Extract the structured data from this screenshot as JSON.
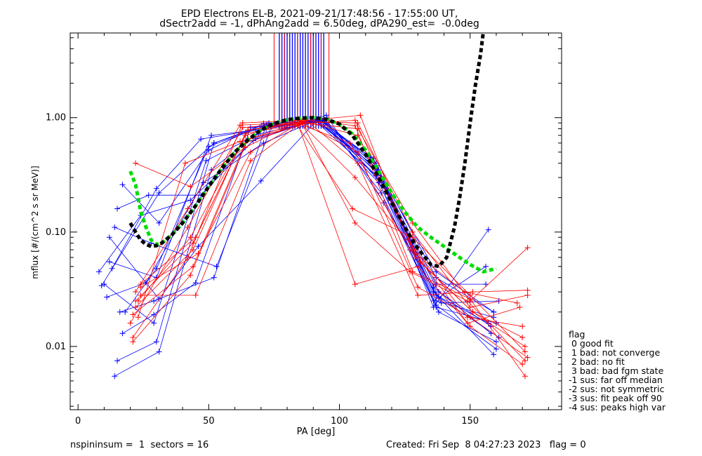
{
  "title_line1": "EPD Electrons EL-B, 2021-09-21/17:48:56 - 17:55:00 UT,",
  "title_line2": "dSectr2add = -1, dPhAng2add = 6.50deg, dPA290_est=  -0.0deg",
  "footer_left": "nspininsum =  1  sectors = 16",
  "footer_right": "Created: Fri Sep  8 04:27:23 2023   flag = 0",
  "legend": {
    "title": "flag",
    "items": [
      " 0 good fit",
      " 1 bad: not converge",
      " 2 bad: no fit",
      " 3 bad: bad fgm state",
      "-1 sus: far off median",
      "-2 sus: not symmetric",
      "-3 sus: fit peak off 90",
      "-4 sus: peaks high var"
    ]
  },
  "colors": {
    "series_a": "#0000ff",
    "series_b": "#ff0000",
    "fit_green": "#00dd00",
    "fit_black": "#000000"
  },
  "chart_data": {
    "type": "line",
    "xlabel": "PA [deg]",
    "ylabel": "mflux [#/(cm^2 s sr MeV)]",
    "xlim": [
      -3,
      185
    ],
    "ylim": [
      0.0028,
      5.5
    ],
    "y_scale": "log",
    "x_ticks": [
      0,
      50,
      100,
      150
    ],
    "x_tick_labels": [
      "0",
      "50",
      "100",
      "150"
    ],
    "y_ticks": [
      0.01,
      0.1,
      1.0
    ],
    "y_tick_labels": [
      "0.01",
      "0.10",
      "1.00"
    ],
    "grid": false,
    "series": [
      {
        "color": "blue",
        "x": [
          9,
          31,
          52,
          73,
          94,
          115,
          136,
          157
        ],
        "y": [
          0.034,
          0.22,
          0.6,
          0.87,
          0.98,
          0.33,
          0.022,
          0.105
        ]
      },
      {
        "color": "blue",
        "x": [
          12,
          30,
          51,
          72,
          93,
          114,
          136,
          156
        ],
        "y": [
          0.055,
          0.04,
          0.7,
          0.8,
          0.96,
          0.38,
          0.025,
          0.05
        ]
      },
      {
        "color": "blue",
        "x": [
          14,
          31,
          51,
          72,
          93,
          114,
          137,
          160
        ],
        "y": [
          0.0055,
          0.009,
          0.35,
          0.84,
          0.94,
          0.4,
          0.023,
          0.0095
        ]
      },
      {
        "color": "blue",
        "x": [
          16,
          29,
          52,
          72,
          92,
          115,
          137,
          159
        ],
        "y": [
          0.02,
          0.025,
          0.04,
          0.86,
          0.92,
          0.35,
          0.04,
          0.02
        ]
      },
      {
        "color": "blue",
        "x": [
          17,
          31,
          50,
          71,
          93,
          116,
          138,
          158
        ],
        "y": [
          0.26,
          0.12,
          0.52,
          0.89,
          0.95,
          0.28,
          0.03,
          0.015
        ]
      },
      {
        "color": "blue",
        "x": [
          14,
          28,
          53,
          74,
          94,
          117,
          138,
          161
        ],
        "y": [
          0.11,
          0.08,
          0.05,
          0.83,
          0.97,
          0.25,
          0.027,
          0.012
        ]
      },
      {
        "color": "blue",
        "x": [
          15,
          30,
          52,
          73,
          92,
          113,
          136,
          159
        ],
        "y": [
          0.0075,
          0.011,
          0.6,
          0.9,
          0.91,
          0.44,
          0.03,
          0.0085
        ]
      },
      {
        "color": "blue",
        "x": [
          10,
          29,
          49,
          69,
          91,
          114,
          137,
          156
        ],
        "y": [
          0.035,
          0.016,
          0.42,
          0.72,
          0.93,
          0.37,
          0.035,
          0.035
        ]
      },
      {
        "color": "blue",
        "x": [
          11,
          26,
          48,
          71,
          93,
          116,
          137,
          159
        ],
        "y": [
          0.027,
          0.036,
          0.27,
          0.6,
          0.99,
          0.3,
          0.025,
          0.018
        ]
      },
      {
        "color": "blue",
        "x": [
          13,
          30,
          47,
          68,
          94,
          116,
          138,
          160
        ],
        "y": [
          0.048,
          0.24,
          0.65,
          0.78,
          0.96,
          0.22,
          0.02,
          0.011
        ]
      },
      {
        "color": "blue",
        "x": [
          8,
          24,
          43,
          68,
          95,
          117,
          139,
          161
        ],
        "y": [
          0.045,
          0.14,
          0.19,
          0.66,
          1.05,
          0.18,
          0.024,
          0.025
        ]
      },
      {
        "color": "blue",
        "x": [
          17,
          29,
          45,
          66,
          93,
          112,
          136,
          158
        ],
        "y": [
          0.013,
          0.019,
          0.036,
          0.82,
          0.94,
          0.45,
          0.033,
          0.013
        ]
      },
      {
        "color": "blue",
        "x": [
          18,
          30,
          50,
          71,
          92,
          115,
          137,
          159
        ],
        "y": [
          0.02,
          0.048,
          0.56,
          0.84,
          0.92,
          0.33,
          0.045,
          0.02
        ]
      },
      {
        "color": "blue",
        "x": [
          15,
          27,
          47,
          67,
          92,
          115,
          137,
          157
        ],
        "y": [
          0.16,
          0.21,
          0.21,
          0.63,
          0.97,
          0.27,
          0.028,
          0.016
        ]
      },
      {
        "color": "blue",
        "x": [
          12,
          31,
          46,
          70,
          91,
          114,
          137,
          160
        ],
        "y": [
          0.09,
          0.026,
          0.075,
          0.28,
          0.93,
          0.31,
          0.022,
          0.016
        ]
      },
      {
        "color": "red",
        "x": [
          24,
          45,
          65,
          86,
          107,
          128,
          150,
          172
        ],
        "y": [
          0.035,
          0.09,
          0.78,
          0.9,
          0.8,
          0.12,
          0.025,
          0.073
        ]
      },
      {
        "color": "red",
        "x": [
          22,
          43,
          64,
          85,
          106,
          127,
          149,
          171
        ],
        "y": [
          0.4,
          0.25,
          0.55,
          0.95,
          0.12,
          0.045,
          0.025,
          0.0075
        ]
      },
      {
        "color": "red",
        "x": [
          21,
          42,
          63,
          84,
          106,
          129,
          149,
          170
        ],
        "y": [
          0.012,
          0.06,
          0.9,
          0.95,
          0.3,
          0.07,
          0.018,
          0.015
        ]
      },
      {
        "color": "red",
        "x": [
          23,
          41,
          62,
          84,
          105,
          128,
          150,
          171
        ],
        "y": [
          0.018,
          0.4,
          0.62,
          0.85,
          0.16,
          0.09,
          0.028,
          0.009
        ]
      },
      {
        "color": "red",
        "x": [
          22,
          44,
          65,
          86,
          107,
          128,
          150,
          172
        ],
        "y": [
          0.025,
          0.08,
          0.78,
          0.92,
          0.9,
          0.1,
          0.022,
          0.028
        ]
      },
      {
        "color": "red",
        "x": [
          21,
          43,
          65,
          87,
          108,
          129,
          151,
          170
        ],
        "y": [
          0.011,
          0.042,
          0.65,
          0.94,
          1.05,
          0.06,
          0.02,
          0.012
        ]
      },
      {
        "color": "red",
        "x": [
          24,
          45,
          66,
          87,
          107,
          130,
          151,
          172
        ],
        "y": [
          0.028,
          0.028,
          0.42,
          0.96,
          0.4,
          0.028,
          0.03,
          0.031
        ]
      },
      {
        "color": "red",
        "x": [
          22,
          44,
          64,
          85,
          106,
          129,
          149,
          169
        ],
        "y": [
          0.022,
          0.07,
          0.73,
          0.88,
          0.95,
          0.065,
          0.016,
          0.022
        ]
      },
      {
        "color": "red",
        "x": [
          20,
          42,
          63,
          84,
          106,
          130,
          150,
          170
        ],
        "y": [
          0.016,
          0.11,
          0.82,
          0.9,
          0.035,
          0.05,
          0.015,
          0.007
        ]
      },
      {
        "color": "red",
        "x": [
          24,
          46,
          66,
          86,
          107,
          131,
          151,
          171
        ],
        "y": [
          0.033,
          0.065,
          0.5,
          0.93,
          0.7,
          0.055,
          0.02,
          0.01
        ]
      },
      {
        "color": "red",
        "x": [
          22,
          42,
          62,
          83,
          104,
          127,
          148,
          168
        ],
        "y": [
          0.03,
          0.16,
          0.86,
          0.91,
          0.6,
          0.07,
          0.03,
          0.024
        ]
      },
      {
        "color": "red",
        "x": [
          23,
          43,
          64,
          85,
          106,
          128,
          150,
          171
        ],
        "y": [
          0.025,
          0.09,
          0.7,
          0.97,
          0.85,
          0.045,
          0.026,
          0.0055
        ]
      },
      {
        "color": "red",
        "x": [
          21,
          44,
          64,
          86,
          107,
          130,
          150,
          172
        ],
        "y": [
          0.019,
          0.05,
          0.6,
          0.89,
          0.5,
          0.033,
          0.018,
          0.008
        ]
      }
    ],
    "fit_curves": [
      {
        "color": "green",
        "x": [
          20,
          22,
          24,
          26,
          28,
          30,
          32,
          36,
          40,
          45,
          50,
          55,
          60,
          65,
          70,
          75,
          80,
          85,
          90,
          95,
          100,
          105,
          110,
          115,
          120,
          125,
          130,
          135,
          140,
          145,
          150,
          155,
          160
        ],
        "y": [
          0.34,
          0.26,
          0.15,
          0.11,
          0.085,
          0.078,
          0.08,
          0.095,
          0.12,
          0.17,
          0.25,
          0.36,
          0.5,
          0.64,
          0.78,
          0.89,
          0.96,
          0.99,
          1.0,
          0.97,
          0.88,
          0.72,
          0.52,
          0.34,
          0.22,
          0.15,
          0.11,
          0.09,
          0.075,
          0.062,
          0.052,
          0.045,
          0.048
        ]
      },
      {
        "color": "black",
        "x": [
          20,
          22,
          24,
          26,
          28,
          30,
          32,
          36,
          40,
          45,
          50,
          55,
          60,
          65,
          70,
          75,
          80,
          85,
          90,
          95,
          100,
          105,
          110,
          115,
          120,
          125,
          130,
          135,
          138,
          141,
          144,
          146,
          148,
          150,
          152,
          154,
          155
        ],
        "y": [
          0.12,
          0.1,
          0.085,
          0.078,
          0.075,
          0.076,
          0.08,
          0.095,
          0.12,
          0.17,
          0.25,
          0.36,
          0.5,
          0.64,
          0.78,
          0.89,
          0.96,
          0.99,
          1.0,
          0.97,
          0.88,
          0.7,
          0.48,
          0.3,
          0.18,
          0.11,
          0.072,
          0.052,
          0.05,
          0.06,
          0.11,
          0.2,
          0.4,
          0.9,
          1.9,
          3.6,
          5.5
        ]
      }
    ],
    "vertical_lines": {
      "blue": [
        77,
        78,
        79,
        80,
        81,
        82,
        83,
        84,
        85,
        86,
        87,
        88,
        89,
        90,
        91,
        92,
        93,
        94
      ],
      "red": [
        75,
        79,
        84,
        89,
        93,
        96
      ]
    }
  }
}
